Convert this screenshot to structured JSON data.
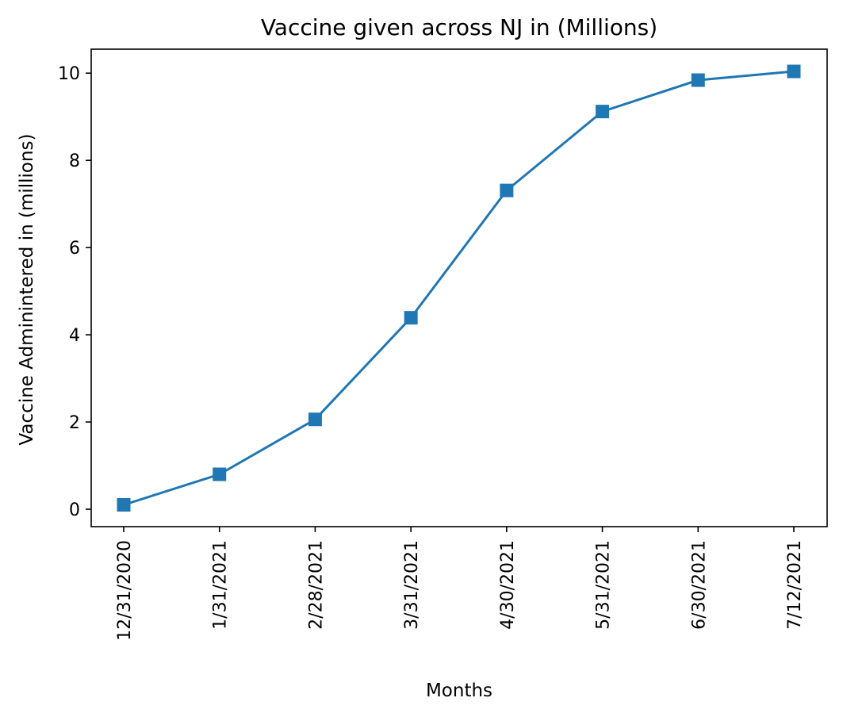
{
  "chart_data": {
    "type": "line",
    "title": "Vaccine given across NJ in (Millions)",
    "xlabel": "Months",
    "ylabel": "Vaccine Adminintered in (millions)",
    "categories": [
      "12/31/2020",
      "1/31/2021",
      "2/28/2021",
      "3/31/2021",
      "4/30/2021",
      "5/31/2021",
      "6/30/2021",
      "7/12/2021"
    ],
    "series": [
      {
        "values": [
          0.1,
          0.8,
          2.06,
          4.39,
          7.31,
          9.12,
          9.84,
          10.04
        ],
        "color": "#1f77b4",
        "marker": "square"
      }
    ],
    "ylim": [
      -0.4,
      10.55
    ],
    "yticks": [
      0,
      2,
      4,
      6,
      8,
      10
    ],
    "grid": false,
    "legend": "none"
  }
}
